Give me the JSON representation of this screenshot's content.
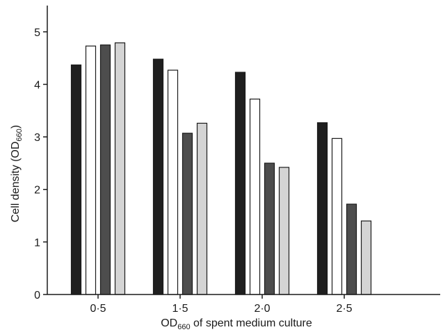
{
  "chart_data": {
    "type": "bar",
    "categories": [
      "0·5",
      "1·5",
      "2·0",
      "2·5"
    ],
    "series": [
      {
        "values": [
          4.37,
          4.48,
          4.23,
          3.27
        ],
        "color": "#1f1f1f"
      },
      {
        "values": [
          4.73,
          4.27,
          3.72,
          2.97
        ],
        "color": "#ffffff"
      },
      {
        "values": [
          4.75,
          3.07,
          2.5,
          1.72
        ],
        "color": "#4d4d4d"
      },
      {
        "values": [
          4.79,
          3.26,
          2.42,
          1.4
        ],
        "color": "#d4d4d4"
      }
    ],
    "ylim": [
      0,
      5.5
    ],
    "yticks": [
      "0",
      "1",
      "2",
      "3",
      "4",
      "5"
    ],
    "ylabel": {
      "main": "Cell density (OD",
      "sub": "660",
      "end": ")"
    },
    "xlabel": {
      "main": "OD",
      "sub": "660",
      "end": " of spent medium culture"
    },
    "grid": false,
    "legend": "none"
  }
}
